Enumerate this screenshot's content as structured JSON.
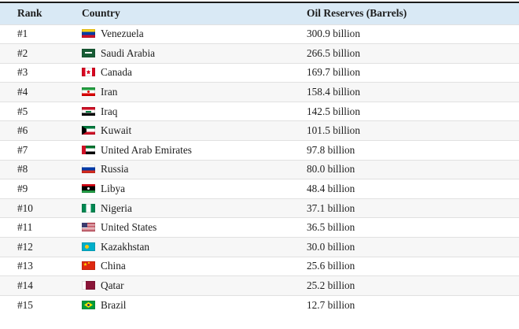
{
  "chart_data": {
    "type": "table",
    "columns": [
      "Rank",
      "Country",
      "Oil Reserves (Barrels)"
    ],
    "rows": [
      {
        "rank": "#1",
        "country": "Venezuela",
        "flag": "venezuela",
        "reserves": "300.9 billion",
        "barrels_billion": 300.9
      },
      {
        "rank": "#2",
        "country": "Saudi Arabia",
        "flag": "saudi-arabia",
        "reserves": "266.5 billion",
        "barrels_billion": 266.5
      },
      {
        "rank": "#3",
        "country": "Canada",
        "flag": "canada",
        "reserves": "169.7 billion",
        "barrels_billion": 169.7
      },
      {
        "rank": "#4",
        "country": "Iran",
        "flag": "iran",
        "reserves": "158.4 billion",
        "barrels_billion": 158.4
      },
      {
        "rank": "#5",
        "country": "Iraq",
        "flag": "iraq",
        "reserves": "142.5 billion",
        "barrels_billion": 142.5
      },
      {
        "rank": "#6",
        "country": "Kuwait",
        "flag": "kuwait",
        "reserves": "101.5 billion",
        "barrels_billion": 101.5
      },
      {
        "rank": "#7",
        "country": "United Arab Emirates",
        "flag": "united-arab-emirates",
        "reserves": "97.8 billion",
        "barrels_billion": 97.8
      },
      {
        "rank": "#8",
        "country": "Russia",
        "flag": "russia",
        "reserves": "80.0 billion",
        "barrels_billion": 80.0
      },
      {
        "rank": "#9",
        "country": "Libya",
        "flag": "libya",
        "reserves": "48.4 billion",
        "barrels_billion": 48.4
      },
      {
        "rank": "#10",
        "country": "Nigeria",
        "flag": "nigeria",
        "reserves": "37.1 billion",
        "barrels_billion": 37.1
      },
      {
        "rank": "#11",
        "country": "United States",
        "flag": "united-states",
        "reserves": "36.5 billion",
        "barrels_billion": 36.5
      },
      {
        "rank": "#12",
        "country": "Kazakhstan",
        "flag": "kazakhstan",
        "reserves": "30.0 billion",
        "barrels_billion": 30.0
      },
      {
        "rank": "#13",
        "country": "China",
        "flag": "china",
        "reserves": "25.6 billion",
        "barrels_billion": 25.6
      },
      {
        "rank": "#14",
        "country": "Qatar",
        "flag": "qatar",
        "reserves": "25.2 billion",
        "barrels_billion": 25.2
      },
      {
        "rank": "#15",
        "country": "Brazil",
        "flag": "brazil",
        "reserves": "12.7 billion",
        "barrels_billion": 12.7
      }
    ]
  },
  "style": {
    "header_bg": "#d9e9f5",
    "top_border_color": "#1b1b1b",
    "row_alt_bg": "#f7f7f7",
    "row_border_color": "#e1e1e1",
    "text_color": "#1d1d1d"
  }
}
